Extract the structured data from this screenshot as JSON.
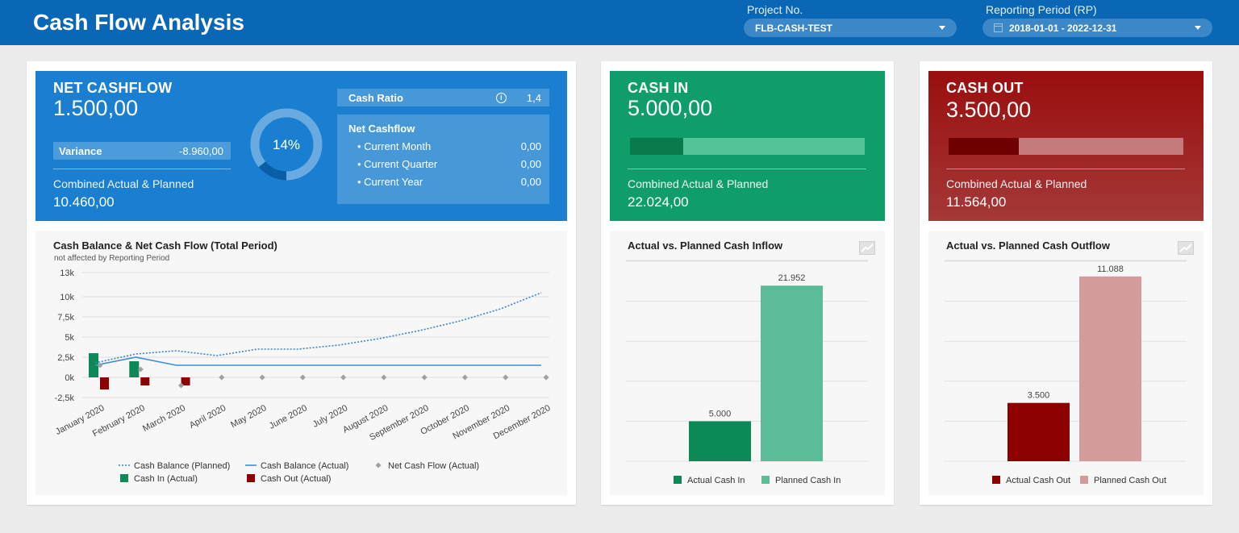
{
  "header": {
    "title": "Cash Flow Analysis",
    "project_label": "Project No.",
    "project_value": "FLB-CASH-TEST",
    "period_label": "Reporting Period (RP)",
    "period_value": "2018-01-01 - 2022-12-31"
  },
  "net_cashflow": {
    "title": "NET CASHFLOW",
    "value": "1.500,00",
    "variance_label": "Variance",
    "variance_value": "-8.960,00",
    "combined_label": "Combined Actual & Planned",
    "combined_value": "10.460,00",
    "donut_percent": "14%",
    "donut_fraction": 0.14,
    "cash_ratio_label": "Cash Ratio",
    "cash_ratio_value": "1,4",
    "breakdown_title": "Net Cashflow",
    "breakdown": [
      {
        "label": "• Current Month",
        "value": "0,00"
      },
      {
        "label": "• Current Quarter",
        "value": "0,00"
      },
      {
        "label": "• Current Year",
        "value": "0,00"
      }
    ]
  },
  "cash_in": {
    "title": "CASH IN",
    "value": "5.000,00",
    "progress_fraction": 0.227,
    "combined_label": "Combined Actual & Planned",
    "combined_value": "22.024,00"
  },
  "cash_out": {
    "title": "CASH OUT",
    "value": "3.500,00",
    "progress_fraction": 0.3,
    "combined_label": "Combined Actual & Planned",
    "combined_value": "11.564,00"
  },
  "colors": {
    "blue_card": "#1a7fd0",
    "green_card": "#0f9e6a",
    "red_card": "#9c1111",
    "green_bar": "#0b8a57",
    "green_bar_light": "#5bbd98",
    "red_bar": "#8c0000",
    "red_bar_light": "#d39c9c"
  },
  "chart_data": [
    {
      "type": "line",
      "title": "Cash Balance & Net Cash Flow (Total Period)",
      "subtitle": "not affected by Reporting Period",
      "categories": [
        "January 2020",
        "February 2020",
        "March 2020",
        "April 2020",
        "May 2020",
        "June 2020",
        "July 2020",
        "August 2020",
        "September 2020",
        "October 2020",
        "November 2020",
        "December 2020"
      ],
      "yticks": [
        "13k",
        "10k",
        "7,5k",
        "5k",
        "2,5k",
        "0k",
        "-2,5k"
      ],
      "ylim": [
        -2500,
        13000
      ],
      "series": [
        {
          "name": "Cash Balance (Planned)",
          "style": "dotted-line",
          "values": [
            1800,
            2900,
            3300,
            2700,
            3500,
            3500,
            4000,
            4800,
            5800,
            7000,
            8500,
            10500
          ]
        },
        {
          "name": "Cash Balance (Actual)",
          "style": "line",
          "values": [
            1500,
            2500,
            1500,
            1500,
            1500,
            1500,
            1500,
            1500,
            1500,
            1500,
            1500,
            1500
          ]
        },
        {
          "name": "Net Cash Flow (Actual)",
          "style": "diamond",
          "values": [
            1500,
            1000,
            -1000,
            0,
            0,
            0,
            0,
            0,
            0,
            0,
            0,
            0
          ]
        },
        {
          "name": "Cash In (Actual)",
          "style": "bar",
          "values": [
            3000,
            2000,
            0,
            0,
            0,
            0,
            0,
            0,
            0,
            0,
            0,
            0
          ]
        },
        {
          "name": "Cash Out (Actual)",
          "style": "bar",
          "values": [
            -1500,
            -1000,
            -1000,
            0,
            0,
            0,
            0,
            0,
            0,
            0,
            0,
            0
          ]
        }
      ]
    },
    {
      "type": "bar",
      "title": "Actual vs. Planned Cash Inflow",
      "categories": [
        "Actual Cash In",
        "Planned Cash In"
      ],
      "values": [
        5000,
        21952
      ],
      "labels": [
        "5.000",
        "21.952"
      ],
      "ylim": [
        0,
        25000
      ]
    },
    {
      "type": "bar",
      "title": "Actual vs. Planned Cash Outflow",
      "categories": [
        "Actual Cash Out",
        "Planned Cash Out"
      ],
      "values": [
        3500,
        11088
      ],
      "labels": [
        "3.500",
        "11.088"
      ],
      "ylim": [
        0,
        12000
      ]
    }
  ]
}
